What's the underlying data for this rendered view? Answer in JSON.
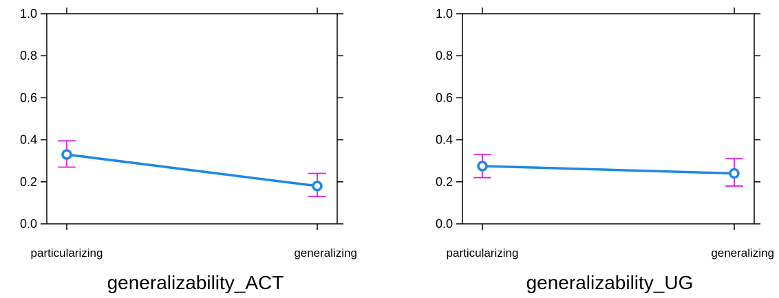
{
  "chart_data": [
    {
      "type": "line",
      "title": "",
      "xlabel": "generalizability_ACT",
      "ylabel": "",
      "categories": [
        "particularizing",
        "generalizing"
      ],
      "ylim": [
        0,
        1
      ],
      "yticks": [
        "0.0",
        "0.2",
        "0.4",
        "0.6",
        "0.8",
        "1.0"
      ],
      "grid": false,
      "series": [
        {
          "values": [
            0.33,
            0.18
          ],
          "lower": [
            0.27,
            0.13
          ],
          "upper": [
            0.395,
            0.24
          ]
        }
      ]
    },
    {
      "type": "line",
      "title": "",
      "xlabel": "generalizability_UG",
      "ylabel": "",
      "categories": [
        "particularizing",
        "generalizing"
      ],
      "ylim": [
        0,
        1
      ],
      "yticks": [
        "0.0",
        "0.2",
        "0.4",
        "0.6",
        "0.8",
        "1.0"
      ],
      "grid": false,
      "series": [
        {
          "values": [
            0.275,
            0.24
          ],
          "lower": [
            0.22,
            0.18
          ],
          "upper": [
            0.33,
            0.31
          ]
        }
      ]
    }
  ],
  "colors": {
    "line": "#1E88E5",
    "errorbar": "#E020E0",
    "axis": "#000000"
  }
}
